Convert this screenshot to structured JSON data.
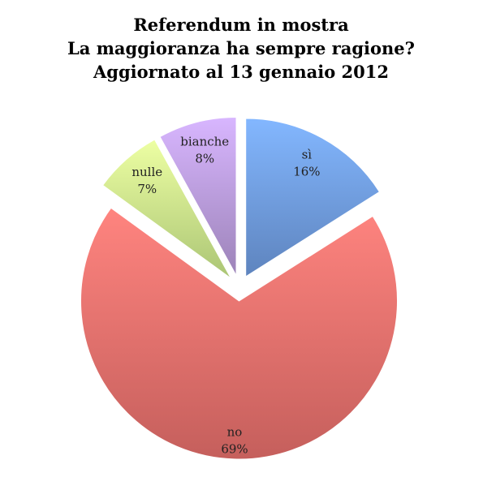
{
  "chart_data": {
    "type": "pie",
    "title": [
      "Referendum in mostra",
      "La maggioranza ha sempre ragione?",
      "Aggiornato al 13 gennaio 2012"
    ],
    "categories": [
      "sì",
      "no",
      "nulle",
      "bianche"
    ],
    "values": [
      16,
      69,
      7,
      8
    ],
    "value_labels": [
      "16%",
      "69%",
      "7%",
      "8%"
    ],
    "colors": [
      "#6f9be0",
      "#e8706c",
      "#c9e88a",
      "#b79ad9"
    ]
  }
}
